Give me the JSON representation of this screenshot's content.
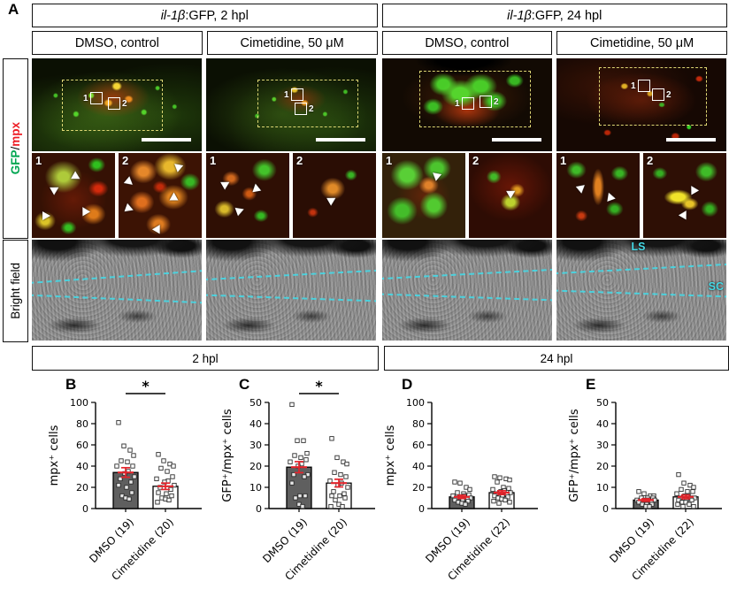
{
  "colors": {
    "gfp-green": "#00a651",
    "mpx-red": "#ed1c24",
    "annotation-cyan": "#45d9e6",
    "error-red": "#e3242b",
    "bar-dark": "#5f5f5f",
    "bar-light": "#ffffff",
    "roi-yellow": "#e8e07a"
  },
  "figure": {
    "panel_a": "A",
    "top_headers": [
      {
        "gene": "il-1β",
        "rest": ":GFP, 2 hpl"
      },
      {
        "gene": "il-1β",
        "rest": ":GFP, 24 hpl"
      }
    ],
    "treatment_headers": [
      "DMSO, control",
      "Cimetidine, 50 μM",
      "DMSO, control",
      "Cimetidine, 50 μM"
    ],
    "row_labels": {
      "gfp": "GFP",
      "slash": "/",
      "mpx": "mpx",
      "bright": "Bright field"
    },
    "section_headers": [
      "2 hpl",
      "24 hpl"
    ],
    "marker_labels": [
      "1",
      "2"
    ],
    "brightfield_labels": {
      "ls": "LS",
      "sc": "SC"
    }
  },
  "chart_data": [
    {
      "id": "B",
      "type": "bar",
      "ylabel": "mpx⁺ cells",
      "xlabel": "",
      "ylim": [
        0,
        100
      ],
      "yticks": [
        0,
        20,
        40,
        60,
        80,
        100
      ],
      "categories": [
        "DMSO (19)",
        "Cimetidine (20)"
      ],
      "values": [
        34,
        21
      ],
      "sem": [
        4.5,
        3
      ],
      "significance": "*",
      "bar_fills": [
        "#5f5f5f",
        "#ffffff"
      ],
      "points": [
        [
          81,
          59,
          55,
          50,
          45,
          44,
          40,
          40,
          35,
          33,
          30,
          28,
          25,
          22,
          20,
          15,
          12,
          10,
          9
        ],
        [
          51,
          45,
          42,
          40,
          38,
          35,
          30,
          28,
          26,
          25,
          22,
          20,
          18,
          15,
          14,
          12,
          10,
          9,
          8,
          6
        ]
      ]
    },
    {
      "id": "C",
      "type": "bar",
      "ylabel": "GFP⁺/mpx⁺ cells",
      "xlabel": "",
      "ylim": [
        0,
        50
      ],
      "yticks": [
        0,
        10,
        20,
        30,
        40,
        50
      ],
      "categories": [
        "DMSO (19)",
        "Cimetidine (20)"
      ],
      "values": [
        19.5,
        12
      ],
      "sem": [
        2.6,
        1.8
      ],
      "significance": "*",
      "bar_fills": [
        "#5f5f5f",
        "#ffffff"
      ],
      "points": [
        [
          49,
          32,
          32,
          26,
          25,
          24,
          23,
          22,
          21,
          20,
          16,
          16,
          15,
          12,
          6,
          6,
          5,
          2,
          1
        ],
        [
          33,
          24,
          22,
          21,
          17,
          16,
          15,
          13,
          12,
          11,
          10,
          8,
          7,
          6,
          6,
          5,
          4,
          2,
          1,
          1
        ]
      ]
    },
    {
      "id": "D",
      "type": "bar",
      "ylabel": "mpx⁺ cells",
      "xlabel": "",
      "ylim": [
        0,
        100
      ],
      "yticks": [
        0,
        20,
        40,
        60,
        80,
        100
      ],
      "categories": [
        "DMSO (19)",
        "Cimetidine (22)"
      ],
      "values": [
        11,
        15
      ],
      "sem": [
        1.5,
        1.8
      ],
      "significance": null,
      "bar_fills": [
        "#5f5f5f",
        "#ffffff"
      ],
      "points": [
        [
          25,
          24,
          20,
          18,
          15,
          14,
          13,
          12,
          12,
          11,
          10,
          10,
          9,
          8,
          8,
          7,
          6,
          5,
          4
        ],
        [
          30,
          29,
          28,
          27,
          25,
          20,
          19,
          18,
          17,
          16,
          15,
          14,
          13,
          12,
          12,
          11,
          10,
          9,
          8,
          7,
          6,
          5
        ]
      ]
    },
    {
      "id": "E",
      "type": "bar",
      "ylabel": "GFP⁺/mpx⁺ cells",
      "xlabel": "",
      "ylim": [
        0,
        50
      ],
      "yticks": [
        0,
        10,
        20,
        30,
        40,
        50
      ],
      "categories": [
        "DMSO (19)",
        "Cimetidine (22)"
      ],
      "values": [
        4,
        5.5
      ],
      "sem": [
        0.6,
        0.9
      ],
      "significance": null,
      "bar_fills": [
        "#5f5f5f",
        "#ffffff"
      ],
      "points": [
        [
          8,
          7,
          6,
          6,
          5,
          5,
          5,
          4,
          4,
          4,
          4,
          3,
          3,
          3,
          2,
          2,
          2,
          1,
          1
        ],
        [
          16,
          12,
          11,
          10,
          9,
          8,
          8,
          7,
          6,
          6,
          5,
          5,
          5,
          4,
          4,
          4,
          3,
          3,
          2,
          2,
          1,
          1
        ]
      ]
    }
  ]
}
